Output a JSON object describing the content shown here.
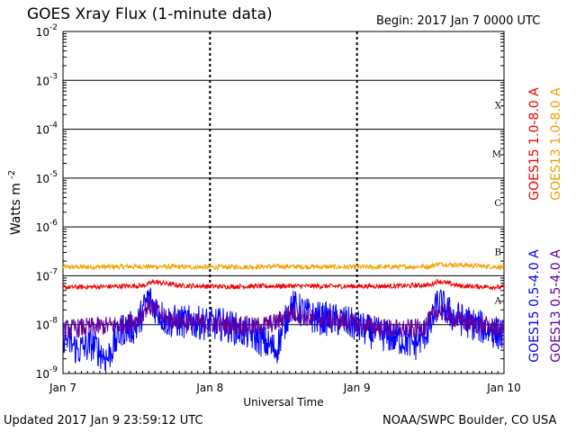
{
  "header": {
    "title": "GOES Xray Flux (1-minute data)",
    "begin": "Begin:  2017 Jan 7 0000 UTC"
  },
  "footer": {
    "updated": "Updated 2017 Jan  9 23:59:12 UTC",
    "credit": "NOAA/SWPC Boulder, CO USA"
  },
  "chart_data": {
    "type": "line",
    "ylabel": "Watts m",
    "ylabel_sup": "-2",
    "xlabel": "Universal Time",
    "yscale": "log",
    "ylim": [
      1e-09,
      0.01
    ],
    "x_range_days": [
      0,
      3
    ],
    "x_tick_labels": [
      "Jan 7",
      "Jan 8",
      "Jan 9",
      "Jan 10"
    ],
    "y_ticks": [
      {
        "base": "10",
        "exp": "-9",
        "value": 1e-09
      },
      {
        "base": "10",
        "exp": "-8",
        "value": 1e-08
      },
      {
        "base": "10",
        "exp": "-7",
        "value": 1e-07
      },
      {
        "base": "10",
        "exp": "-6",
        "value": 1e-06
      },
      {
        "base": "10",
        "exp": "-5",
        "value": 1e-05
      },
      {
        "base": "10",
        "exp": "-4",
        "value": 0.0001
      },
      {
        "base": "10",
        "exp": "-3",
        "value": 0.001
      },
      {
        "base": "10",
        "exp": "-2",
        "value": 0.01
      }
    ],
    "flare_classes": [
      {
        "label": "A",
        "value": 1e-08
      },
      {
        "label": "B",
        "value": 1e-07
      },
      {
        "label": "C",
        "value": 1e-06
      },
      {
        "label": "M",
        "value": 1e-05
      },
      {
        "label": "X",
        "value": 0.0001
      }
    ],
    "series": [
      {
        "name": "GOES15 1.0-8.0 A",
        "color": "#ee0000",
        "x": [
          0,
          0.3,
          0.55,
          0.62,
          0.8,
          1.1,
          1.5,
          1.9,
          2.3,
          2.5,
          2.55,
          2.7,
          3.0
        ],
        "y": [
          5.8e-08,
          6e-08,
          6.3e-08,
          7.5e-08,
          6.3e-08,
          6e-08,
          6.2e-08,
          6.1e-08,
          6.2e-08,
          6.5e-08,
          7.8e-08,
          6.2e-08,
          5.8e-08
        ]
      },
      {
        "name": "GOES13 1.0-8.0 A",
        "color": "#f0a000",
        "x": [
          0,
          0.5,
          1.0,
          1.5,
          2.0,
          2.5,
          2.55,
          3.0
        ],
        "y": [
          1.5e-07,
          1.55e-07,
          1.5e-07,
          1.55e-07,
          1.5e-07,
          1.55e-07,
          1.75e-07,
          1.5e-07
        ]
      },
      {
        "name": "GOES15 0.5-4.0 A",
        "color": "#0000ff",
        "x": [
          0,
          0.1,
          0.2,
          0.3,
          0.4,
          0.5,
          0.58,
          0.7,
          0.9,
          1.1,
          1.3,
          1.45,
          1.55,
          1.7,
          1.9,
          2.1,
          2.3,
          2.4,
          2.5,
          2.55,
          2.65,
          2.8,
          3.0
        ],
        "y": [
          6e-09,
          3e-09,
          4e-09,
          2e-09,
          8e-09,
          9e-09,
          3.5e-08,
          1.2e-08,
          1.1e-08,
          1e-08,
          6e-09,
          3e-09,
          2.5e-08,
          1.4e-08,
          1.2e-08,
          7e-09,
          5e-09,
          4e-09,
          9e-09,
          3e-08,
          1.5e-08,
          1e-08,
          6e-09
        ]
      },
      {
        "name": "GOES13 0.5-4.0 A",
        "color": "#6000a0",
        "x": [
          0,
          0.2,
          0.4,
          0.5,
          0.58,
          0.7,
          0.9,
          1.1,
          1.3,
          1.45,
          1.55,
          1.7,
          1.9,
          2.1,
          2.3,
          2.45,
          2.55,
          2.7,
          3.0
        ],
        "y": [
          8e-09,
          9e-09,
          1e-08,
          1.2e-08,
          2.5e-08,
          1.3e-08,
          1.1e-08,
          1e-08,
          9e-09,
          1.1e-08,
          1.8e-08,
          1.3e-08,
          1.2e-08,
          9e-09,
          8e-09,
          8.5e-09,
          2e-08,
          1.2e-08,
          8e-09
        ]
      }
    ]
  }
}
